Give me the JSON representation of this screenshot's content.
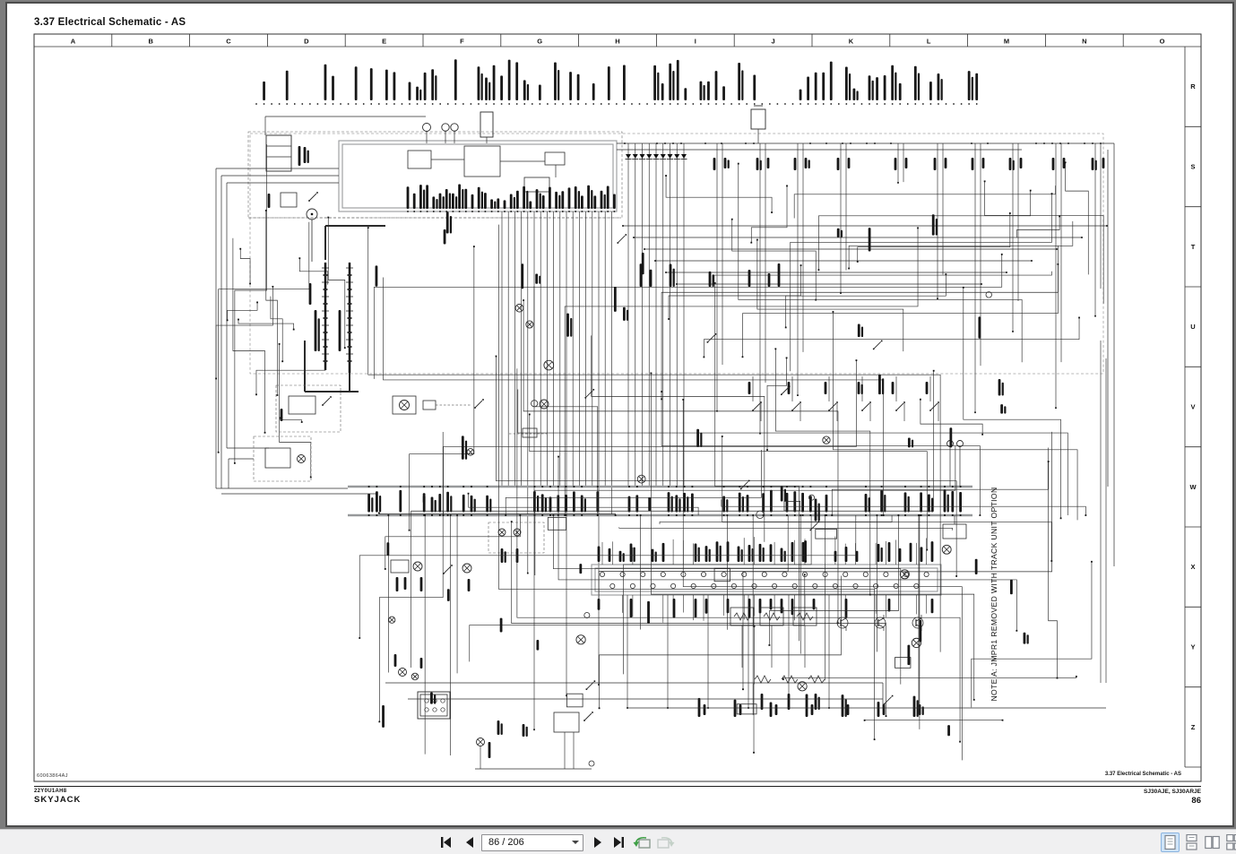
{
  "page": {
    "title": "3.37 Electrical Schematic - AS",
    "grid_columns": [
      "A",
      "B",
      "C",
      "D",
      "E",
      "F",
      "G",
      "H",
      "I",
      "J",
      "K",
      "L",
      "M",
      "N",
      "O"
    ],
    "grid_rows": [
      "R",
      "S",
      "T",
      "U",
      "V",
      "W",
      "X",
      "Y",
      "Z"
    ],
    "schematic_note": "NOTE A: JMPR1 REMOVED WITH TRACK UNIT OPTION",
    "title_block": "3.37  Electrical Schematic - AS",
    "corner_code": "60063864AJ",
    "footer": {
      "doc_code": "22Y0U1AH8",
      "brand": "SKYJACK",
      "models": "SJ30AJE, SJ30ARJE",
      "page_number": "86"
    }
  },
  "toolbar": {
    "page_field_value": "86 / 206",
    "icons": {
      "first_page": "first-page-icon",
      "previous_page": "previous-page-icon",
      "next_page": "next-page-icon",
      "last_page": "last-page-icon",
      "previous_view": "previous-view-icon",
      "next_view": "next-view-icon",
      "page_dropdown": "chevron-down-icon"
    },
    "layout_modes": [
      {
        "name": "single-page",
        "active": true
      },
      {
        "name": "continuous",
        "active": false
      },
      {
        "name": "facing",
        "active": false
      },
      {
        "name": "continuous-facing",
        "active": false
      }
    ]
  },
  "colors": {
    "window_bg": "#7d7d7d",
    "toolbar_bg": "#f0f0f1",
    "active_mode_bg": "#cfe4f8",
    "wire": "#2b2b2b",
    "structure_gray": "#97999b",
    "view_arrow_green": "#3fa046"
  }
}
